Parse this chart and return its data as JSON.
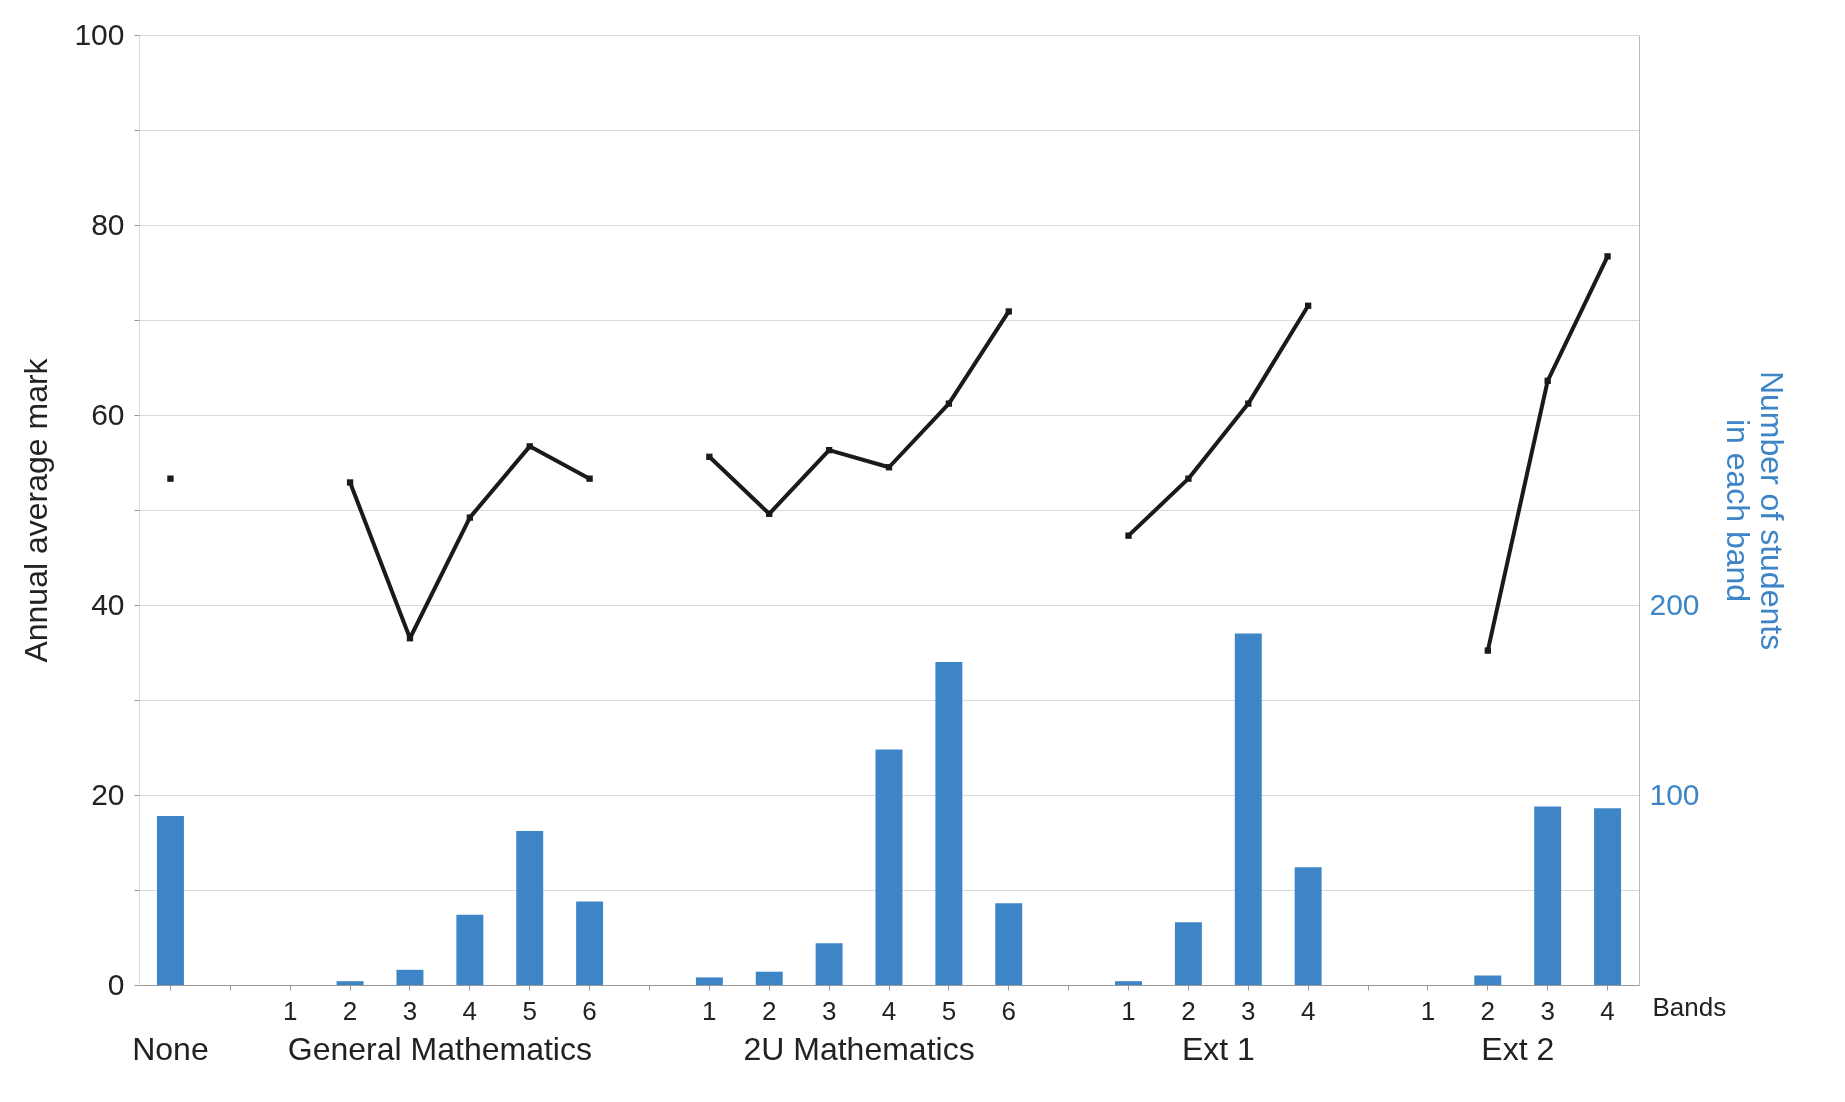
{
  "chart_data": {
    "type": "bar",
    "categories": [
      null,
      null,
      "1",
      "2",
      "3",
      "4",
      "5",
      "6",
      null,
      "1",
      "2",
      "3",
      "4",
      "5",
      "6",
      null,
      "1",
      "2",
      "3",
      "4",
      null,
      "1",
      "2",
      "3",
      "4"
    ],
    "series": [
      {
        "type": "bar",
        "axis": "y2",
        "color": "#3d85c6",
        "values": [
          89,
          null,
          0,
          2,
          8,
          37,
          81,
          44,
          null,
          4,
          7,
          22,
          124,
          170,
          43,
          null,
          2,
          33,
          185,
          62,
          null,
          0,
          5,
          94,
          93
        ]
      },
      {
        "type": "line",
        "color": "#1a1a1a",
        "values": [
          53.3,
          null,
          null,
          52.9,
          36.5,
          49.2,
          56.7,
          53.3,
          null,
          55.6,
          49.6,
          56.3,
          54.5,
          61.2,
          70.9,
          null,
          47.3,
          53.3,
          61.2,
          71.5,
          null,
          null,
          35.2,
          63.6,
          76.7
        ]
      }
    ],
    "ylabel": "Annual average mark",
    "y2label": "Number of students in each band",
    "xlabel": "Bands",
    "ylim": [
      0,
      100
    ],
    "yticks": [
      0,
      {
        "value": 10,
        "label": null
      },
      20,
      {
        "value": 30,
        "label": null
      },
      40,
      {
        "value": 50,
        "label": null
      },
      60,
      {
        "value": 70,
        "label": null
      },
      80,
      {
        "value": 90,
        "label": null
      },
      100
    ],
    "y2lim": [
      0,
      500
    ],
    "y2ticks": [
      100,
      200
    ],
    "grid": "y",
    "marker": "square",
    "line_style": "solid",
    "annotations": [
      "None",
      "General Mathematics",
      "2U Mathematics",
      "Ext 1",
      "Ext 2"
    ]
  }
}
